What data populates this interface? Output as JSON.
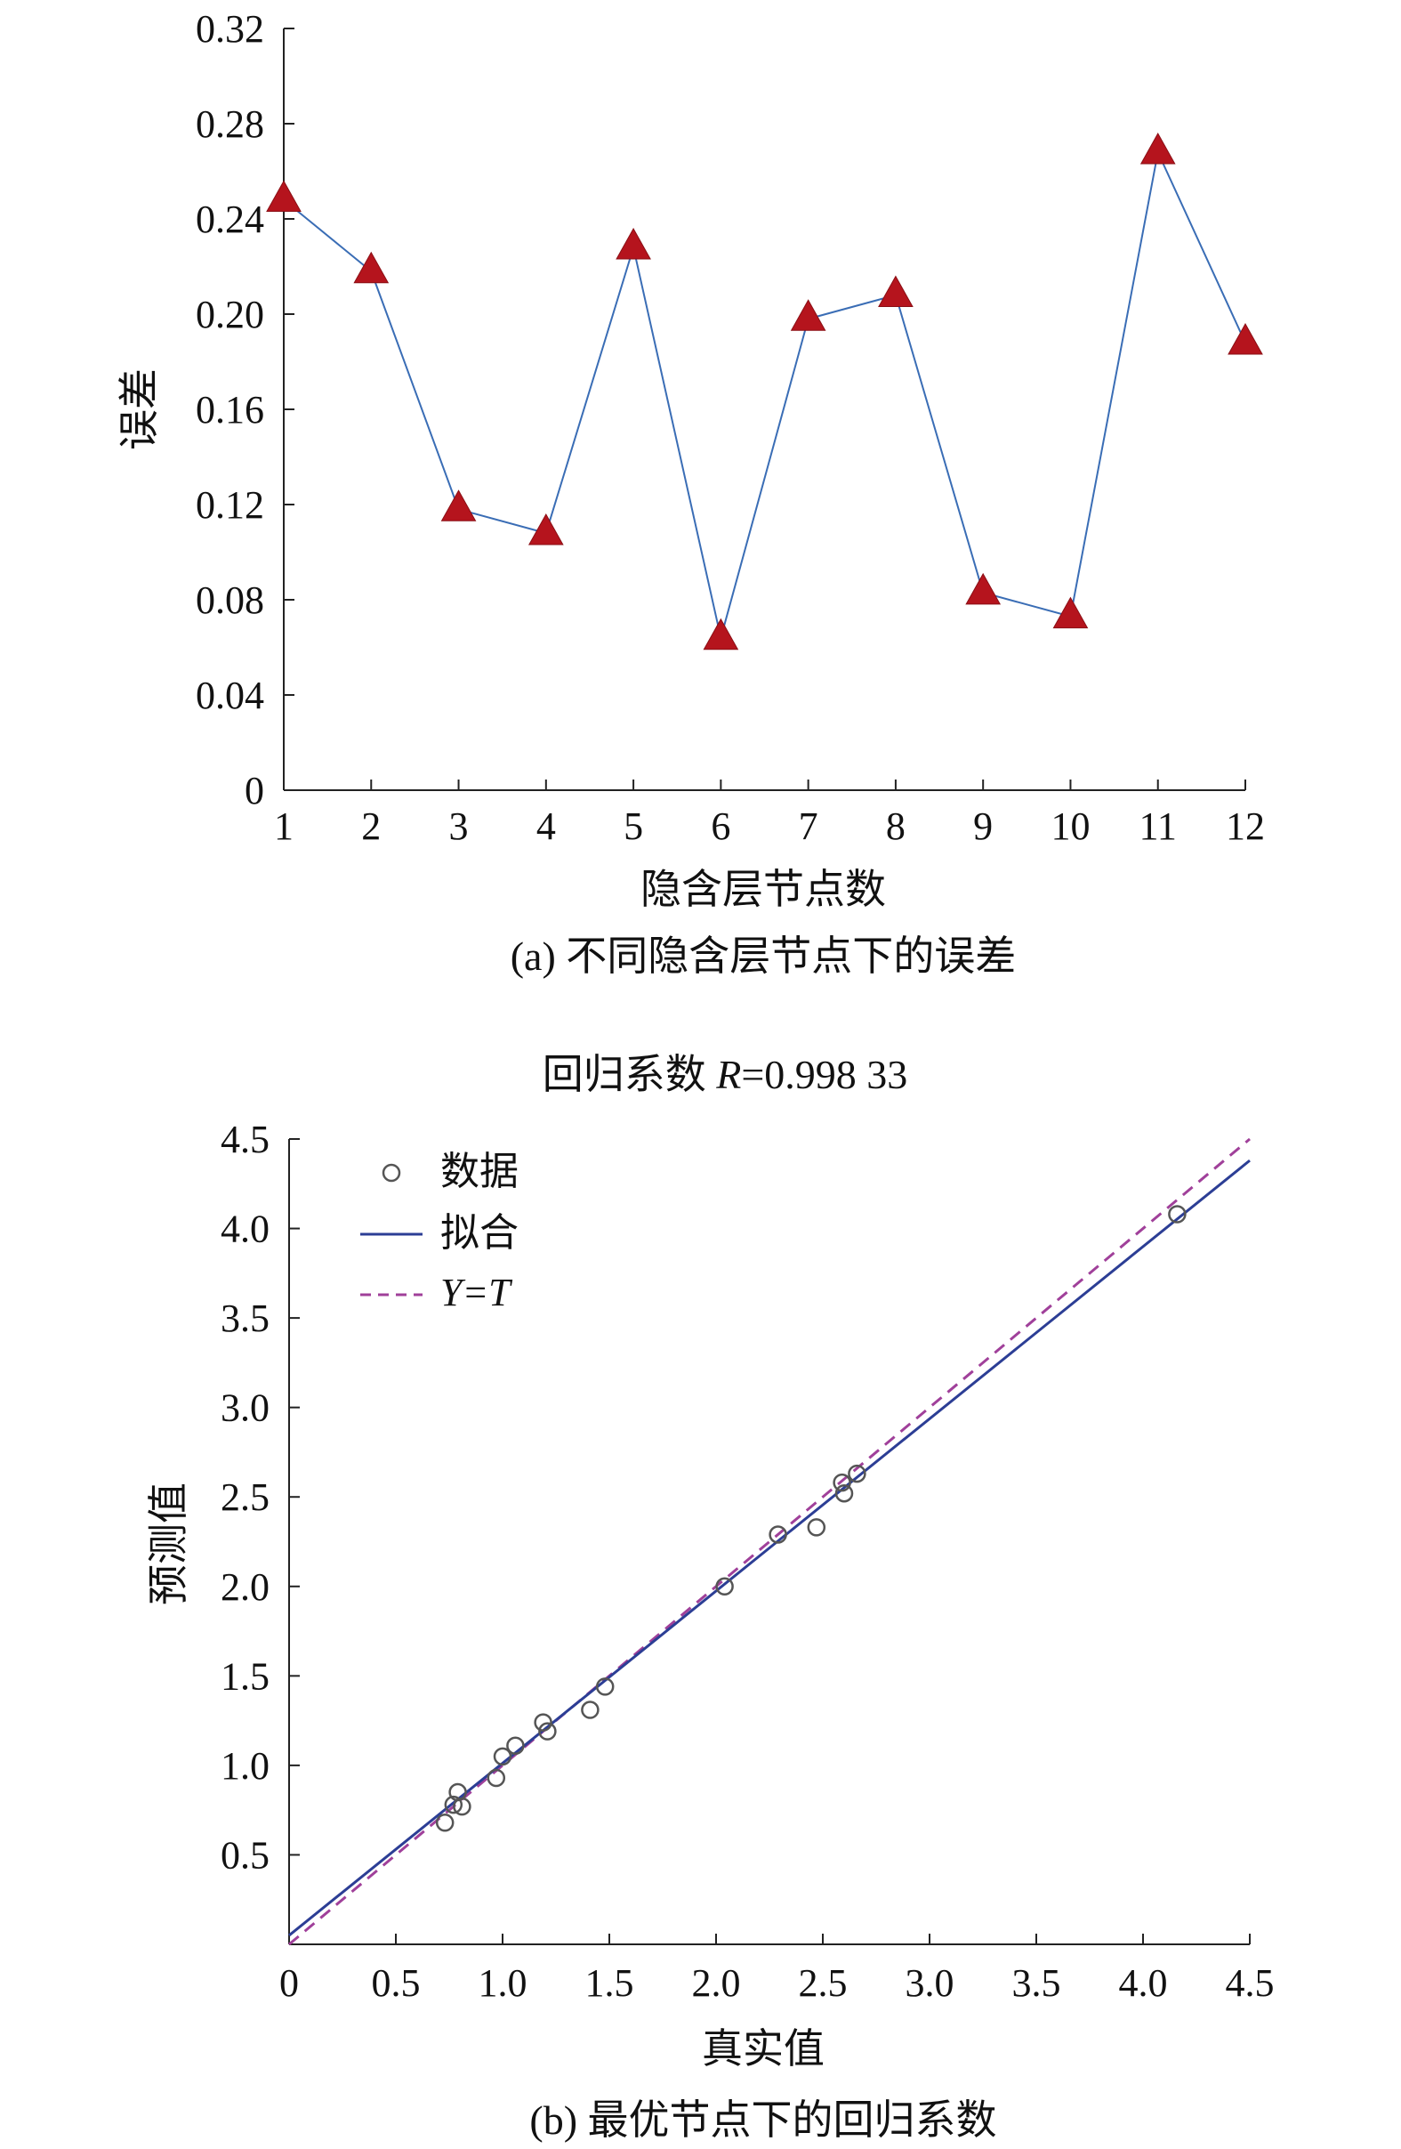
{
  "chart_data": [
    {
      "type": "line",
      "xlabel": "隐含层节点数",
      "ylabel": "误差",
      "caption": "(a) 不同隐含层节点下的误差",
      "xlim": [
        1,
        12
      ],
      "ylim": [
        0,
        0.32
      ],
      "x_ticks": [
        "1",
        "2",
        "3",
        "4",
        "5",
        "6",
        "7",
        "8",
        "9",
        "10",
        "11",
        "12"
      ],
      "y_ticks": [
        "0",
        "0.04",
        "0.08",
        "0.12",
        "0.16",
        "0.20",
        "0.24",
        "0.28",
        "0.32"
      ],
      "grid": false,
      "series": [
        {
          "x": [
            1,
            2,
            3,
            4,
            5,
            6,
            7,
            8,
            9,
            10,
            11,
            12
          ],
          "values": [
            0.248,
            0.218,
            0.118,
            0.108,
            0.228,
            0.064,
            0.198,
            0.208,
            0.083,
            0.073,
            0.268,
            0.188
          ],
          "line_color": "#3a6db5",
          "marker": "triangle",
          "marker_color": "#b5141d"
        }
      ]
    },
    {
      "type": "scatter",
      "title_prefix": "回归系数 ",
      "title_var": "R",
      "title_suffix": "=0.998 33",
      "xlabel": "真实值",
      "ylabel": "预测值",
      "caption": "(b) 最优节点下的回归系数",
      "xlim": [
        0,
        4.5
      ],
      "ylim": [
        0,
        4.5
      ],
      "x_ticks": [
        "0",
        "0.5",
        "1.0",
        "1.5",
        "2.0",
        "2.5",
        "3.0",
        "3.5",
        "4.0",
        "4.5"
      ],
      "y_ticks": [
        "0.5",
        "1.0",
        "1.5",
        "2.0",
        "2.5",
        "3.0",
        "3.5",
        "4.0",
        "4.5"
      ],
      "grid": false,
      "legend_position": "top-left",
      "legend": [
        {
          "label": "数据",
          "style": "circle"
        },
        {
          "label": "拟合",
          "style": "solid"
        },
        {
          "label": "Y=T",
          "style": "dashed",
          "italic": true
        }
      ],
      "points": {
        "x": [
          0.73,
          0.77,
          0.79,
          0.81,
          0.97,
          1.0,
          1.06,
          1.19,
          1.21,
          1.41,
          1.48,
          2.04,
          2.29,
          2.47,
          2.59,
          2.6,
          2.66,
          4.16
        ],
        "y": [
          0.68,
          0.78,
          0.85,
          0.77,
          0.93,
          1.05,
          1.11,
          1.24,
          1.19,
          1.31,
          1.44,
          2.0,
          2.29,
          2.33,
          2.58,
          2.52,
          2.63,
          4.08
        ]
      },
      "fit_line": {
        "x": [
          0,
          4.5
        ],
        "y": [
          0.05,
          4.38
        ],
        "color": "#2c3e95"
      },
      "identity_line": {
        "x": [
          0,
          4.5
        ],
        "y": [
          0,
          4.5
        ],
        "color": "#a0409a"
      }
    }
  ]
}
